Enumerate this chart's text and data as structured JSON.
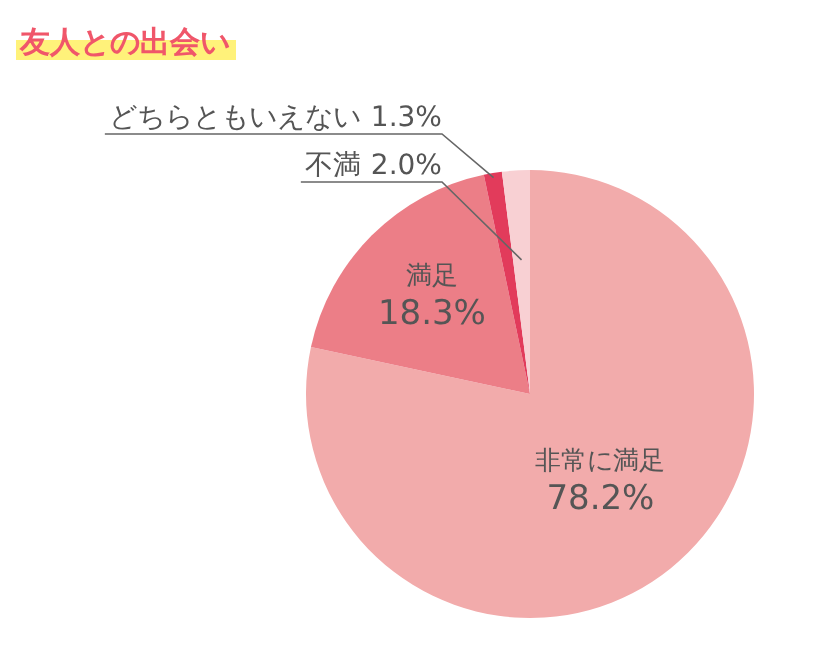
{
  "chart_data": {
    "type": "pie",
    "title": "友人との出会い",
    "categories": [
      "非常に満足",
      "満足",
      "どちらともいえない",
      "不満"
    ],
    "values": [
      78.2,
      18.3,
      1.3,
      2.0
    ],
    "colors": [
      "#f2abab",
      "#ec7e87",
      "#e23b5b",
      "#f8d0d3"
    ],
    "value_labels": [
      "78.2%",
      "18.3%",
      "1.3%",
      "2.0%"
    ]
  }
}
